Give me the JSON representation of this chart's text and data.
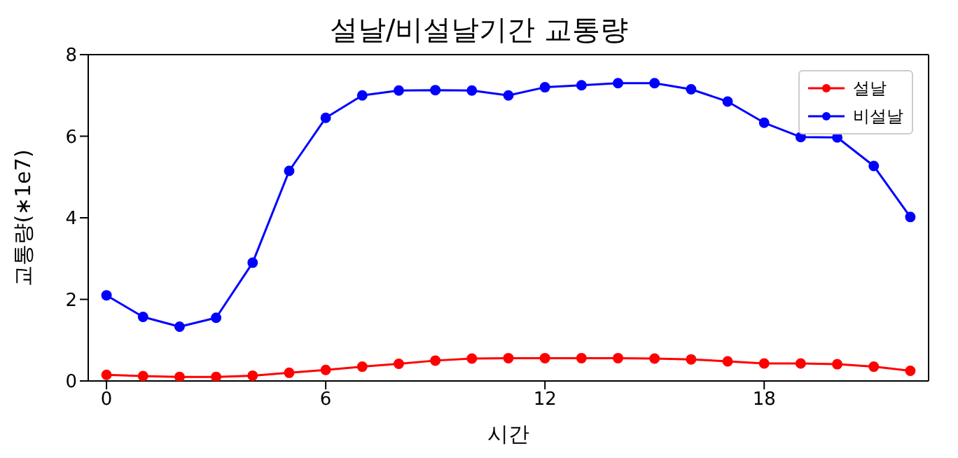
{
  "chart_data": {
    "type": "line",
    "title": "설날/비설날기간 교통량",
    "xlabel": "시간",
    "ylabel": "교통량(∗1e7)",
    "x": [
      0,
      1,
      2,
      3,
      4,
      5,
      6,
      7,
      8,
      9,
      10,
      11,
      12,
      13,
      14,
      15,
      16,
      17,
      18,
      19,
      20,
      21,
      22
    ],
    "series": [
      {
        "name": "설날",
        "color": "#ff0000",
        "values": [
          0.15,
          0.12,
          0.1,
          0.1,
          0.13,
          0.2,
          0.27,
          0.35,
          0.42,
          0.5,
          0.55,
          0.56,
          0.56,
          0.56,
          0.56,
          0.55,
          0.53,
          0.48,
          0.43,
          0.43,
          0.41,
          0.35,
          0.25
        ]
      },
      {
        "name": "비설날",
        "color": "#0000ff",
        "values": [
          2.1,
          1.57,
          1.33,
          1.55,
          2.9,
          5.15,
          6.45,
          7.0,
          7.12,
          7.13,
          7.12,
          7.0,
          7.2,
          7.25,
          7.3,
          7.3,
          7.15,
          6.85,
          6.33,
          5.98,
          5.97,
          5.27,
          4.02
        ]
      }
    ],
    "xlim": [
      -0.5,
      22.5
    ],
    "xticks": [
      0,
      6,
      12,
      18
    ],
    "ylim": [
      0,
      8
    ],
    "yticks": [
      0,
      2,
      4,
      6,
      8
    ],
    "grid": false,
    "legend": "top right",
    "marker": "circle",
    "line_style": "solid"
  }
}
